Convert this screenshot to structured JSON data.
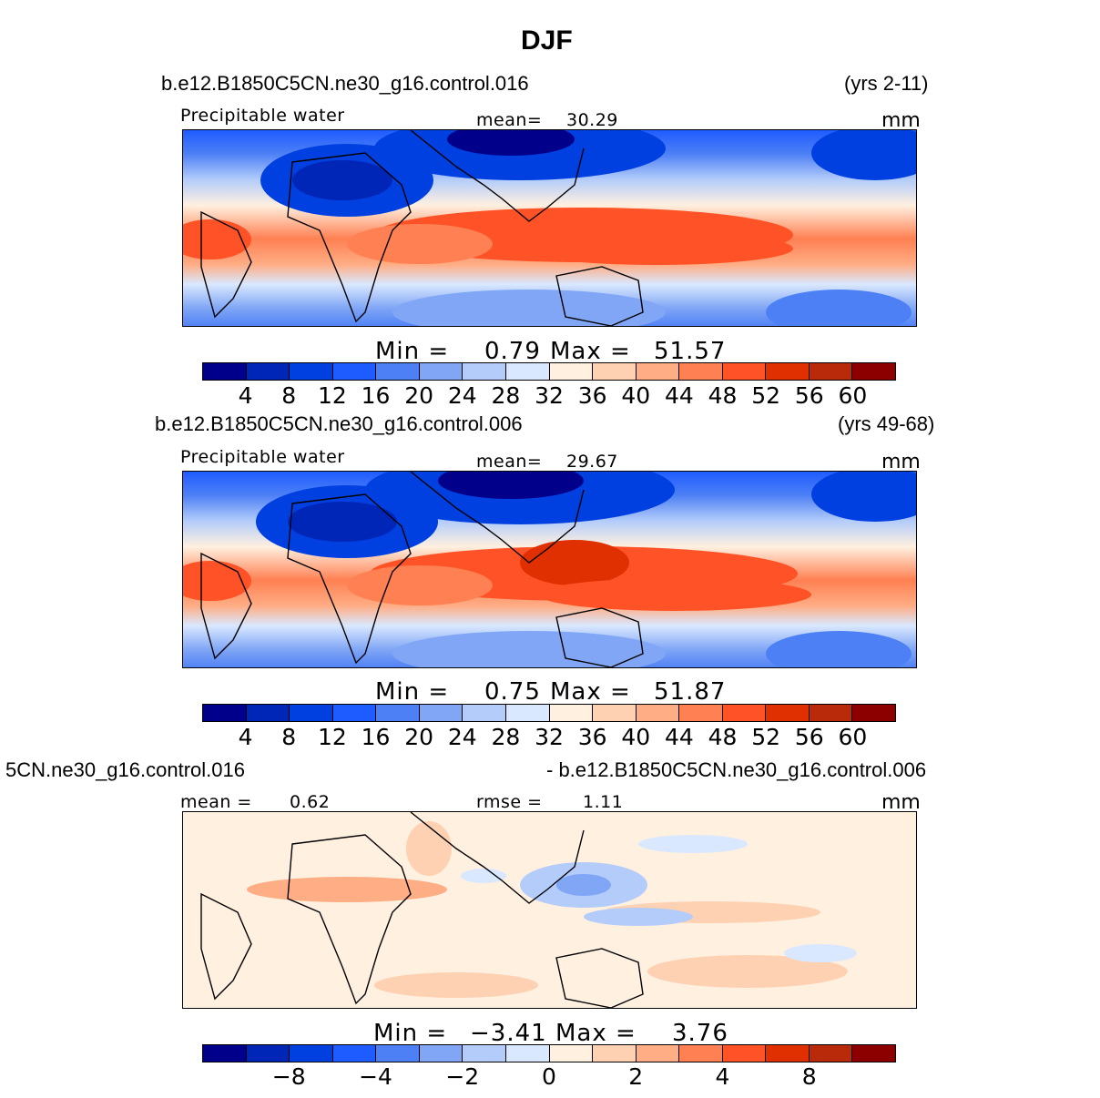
{
  "title": "DJF",
  "palette": [
    "#00008a",
    "#0026b8",
    "#0040e0",
    "#1f5cff",
    "#4d80f5",
    "#80a6f5",
    "#b3ccfa",
    "#d9e8ff",
    "#fff0e0",
    "#ffd1b3",
    "#ffad85",
    "#ff8052",
    "#ff5226",
    "#e02f00",
    "#b82a0a",
    "#8c0000"
  ],
  "panels": [
    {
      "case": "b.e12.B1850C5CN.ne30_g16.control.016",
      "years": "(yrs 2-11)",
      "variable": "Precipitable water",
      "mean_label": "mean=",
      "mean_value": "30.29",
      "units": "mm",
      "min_label": "Min  =",
      "min_value": "0.79",
      "max_label": "Max  =",
      "max_value": "51.57",
      "ticks": [
        "4",
        "8",
        "12",
        "16",
        "20",
        "24",
        "28",
        "32",
        "36",
        "40",
        "44",
        "48",
        "52",
        "56",
        "60"
      ]
    },
    {
      "case": "b.e12.B1850C5CN.ne30_g16.control.006",
      "years": "(yrs 49-68)",
      "variable": "Precipitable water",
      "mean_label": "mean=",
      "mean_value": "29.67",
      "units": "mm",
      "min_label": "Min  =",
      "min_value": "0.75",
      "max_label": "Max  =",
      "max_value": "51.87",
      "ticks": [
        "4",
        "8",
        "12",
        "16",
        "20",
        "24",
        "28",
        "32",
        "36",
        "40",
        "44",
        "48",
        "52",
        "56",
        "60"
      ]
    },
    {
      "case_left": "5CN.ne30_g16.control.016",
      "case_right": "- b.e12.B1850C5CN.ne30_g16.control.006",
      "mean_label": "mean  =",
      "mean_value": "0.62",
      "rmse_label": "rmse  =",
      "rmse_value": "1.11",
      "units": "mm",
      "min_label": "Min  =",
      "min_value": "−3.41",
      "max_label": "Max  =",
      "max_value": "3.76",
      "ticks": [
        "−8",
        "−4",
        "−2",
        "0",
        "2",
        "4",
        "8"
      ]
    }
  ]
}
